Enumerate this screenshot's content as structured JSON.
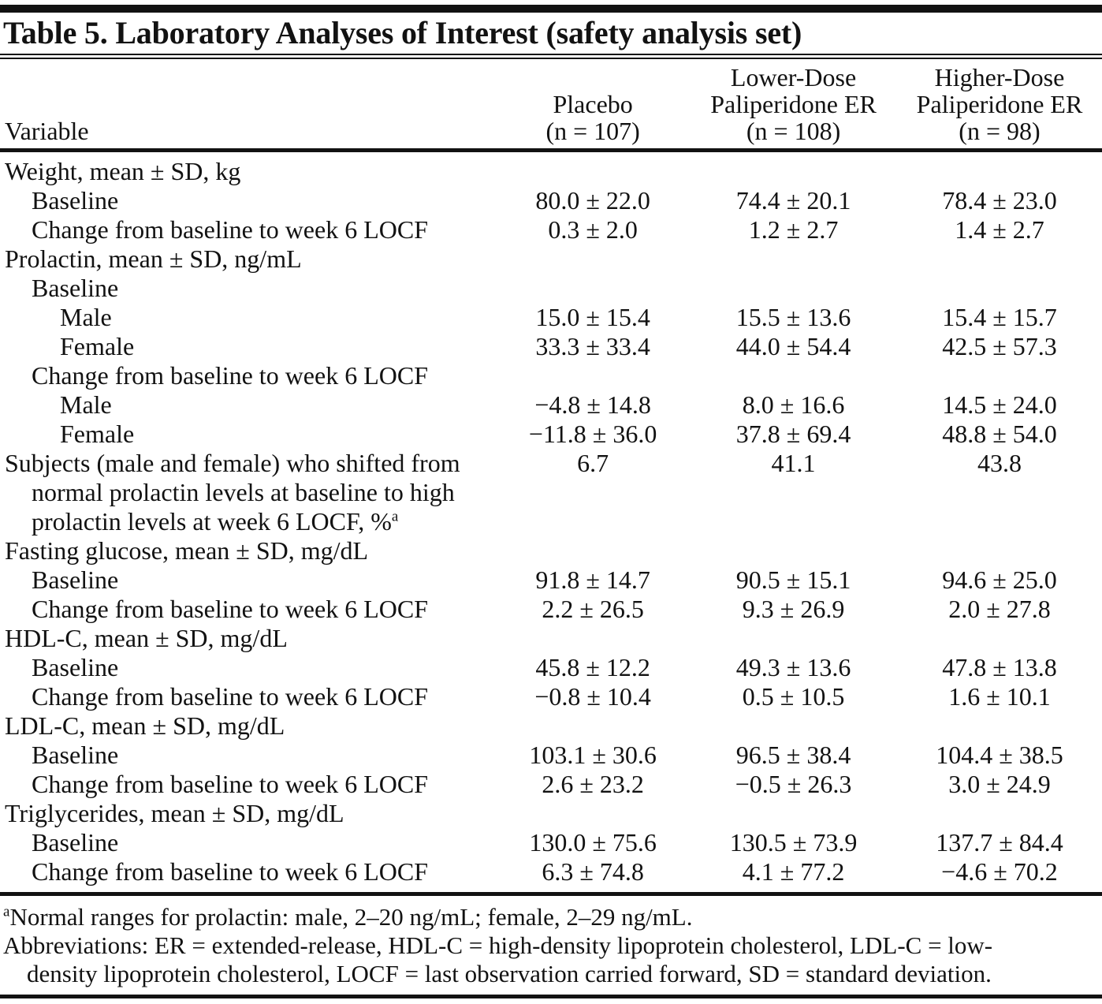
{
  "colors": {
    "text": "#121212",
    "background": "#ffffff",
    "rule": "#121212"
  },
  "table": {
    "title": "Table 5. Laboratory Analyses of Interest (safety analysis set)",
    "columns": [
      {
        "lines": [
          "Variable"
        ]
      },
      {
        "lines": [
          "Placebo",
          "(n = 107)"
        ]
      },
      {
        "lines": [
          "Lower-Dose",
          "Paliperidone ER",
          "(n = 108)"
        ]
      },
      {
        "lines": [
          "Higher-Dose",
          "Paliperidone ER",
          "(n = 98)"
        ]
      }
    ],
    "rows": [
      {
        "indent": 0,
        "label": "Weight, mean ± SD, kg",
        "sup": "",
        "values": [
          "",
          "",
          ""
        ]
      },
      {
        "indent": 1,
        "label": "Baseline",
        "sup": "",
        "values": [
          "80.0 ± 22.0",
          "74.4 ± 20.1",
          "78.4 ± 23.0"
        ]
      },
      {
        "indent": 1,
        "label": "Change from baseline to week 6 LOCF",
        "sup": "",
        "values": [
          "0.3 ± 2.0",
          "1.2 ± 2.7",
          "1.4 ± 2.7"
        ]
      },
      {
        "indent": 0,
        "label": "Prolactin, mean ± SD, ng/mL",
        "sup": "",
        "values": [
          "",
          "",
          ""
        ]
      },
      {
        "indent": 1,
        "label": "Baseline",
        "sup": "",
        "values": [
          "",
          "",
          ""
        ]
      },
      {
        "indent": 2,
        "label": "Male",
        "sup": "",
        "values": [
          "15.0 ± 15.4",
          "15.5 ± 13.6",
          "15.4 ± 15.7"
        ]
      },
      {
        "indent": 2,
        "label": "Female",
        "sup": "",
        "values": [
          "33.3 ± 33.4",
          "44.0 ± 54.4",
          "42.5 ± 57.3"
        ]
      },
      {
        "indent": 1,
        "label": "Change from baseline to week 6 LOCF",
        "sup": "",
        "values": [
          "",
          "",
          ""
        ]
      },
      {
        "indent": 2,
        "label": "Male",
        "sup": "",
        "values": [
          "−4.8 ± 14.8",
          "8.0 ± 16.6",
          "14.5 ± 24.0"
        ]
      },
      {
        "indent": 2,
        "label": "Female",
        "sup": "",
        "values": [
          "−11.8 ± 36.0",
          "37.8 ± 69.4",
          "48.8 ± 54.0"
        ]
      },
      {
        "indent": 0,
        "label": "Subjects (male and female) who shifted from",
        "sup": "",
        "values": [
          "6.7",
          "41.1",
          "43.8"
        ]
      },
      {
        "indent": 1,
        "label": "normal prolactin levels at baseline to high",
        "sup": "",
        "values": [
          "",
          "",
          ""
        ]
      },
      {
        "indent": 1,
        "label": "prolactin levels at week 6 LOCF, %",
        "sup": "a",
        "values": [
          "",
          "",
          ""
        ]
      },
      {
        "indent": 0,
        "label": "Fasting glucose, mean ± SD, mg/dL",
        "sup": "",
        "values": [
          "",
          "",
          ""
        ]
      },
      {
        "indent": 1,
        "label": "Baseline",
        "sup": "",
        "values": [
          "91.8 ± 14.7",
          "90.5 ± 15.1",
          "94.6 ± 25.0"
        ]
      },
      {
        "indent": 1,
        "label": "Change from baseline to week 6 LOCF",
        "sup": "",
        "values": [
          "2.2 ± 26.5",
          "9.3 ± 26.9",
          "2.0 ± 27.8"
        ]
      },
      {
        "indent": 0,
        "label": "HDL-C, mean ± SD, mg/dL",
        "sup": "",
        "values": [
          "",
          "",
          ""
        ]
      },
      {
        "indent": 1,
        "label": "Baseline",
        "sup": "",
        "values": [
          "45.8 ± 12.2",
          "49.3 ± 13.6",
          "47.8 ± 13.8"
        ]
      },
      {
        "indent": 1,
        "label": "Change from baseline to week 6 LOCF",
        "sup": "",
        "values": [
          "−0.8 ± 10.4",
          "0.5 ± 10.5",
          "1.6 ± 10.1"
        ]
      },
      {
        "indent": 0,
        "label": "LDL-C, mean ± SD, mg/dL",
        "sup": "",
        "values": [
          "",
          "",
          ""
        ]
      },
      {
        "indent": 1,
        "label": "Baseline",
        "sup": "",
        "values": [
          "103.1 ± 30.6",
          "96.5 ± 38.4",
          "104.4 ± 38.5"
        ]
      },
      {
        "indent": 1,
        "label": "Change from baseline to week 6 LOCF",
        "sup": "",
        "values": [
          "2.6 ± 23.2",
          "−0.5 ± 26.3",
          "3.0 ± 24.9"
        ]
      },
      {
        "indent": 0,
        "label": "Triglycerides, mean ± SD, mg/dL",
        "sup": "",
        "values": [
          "",
          "",
          ""
        ]
      },
      {
        "indent": 1,
        "label": "Baseline",
        "sup": "",
        "values": [
          "130.0 ± 75.6",
          "130.5 ± 73.9",
          "137.7 ± 84.4"
        ]
      },
      {
        "indent": 1,
        "label": "Change from baseline to week 6 LOCF",
        "sup": "",
        "values": [
          "6.3 ± 74.8",
          "4.1 ± 77.2",
          "−4.6 ± 70.2"
        ]
      }
    ],
    "footnotes": [
      {
        "sup": "a",
        "text": "Normal ranges for prolactin: male, 2–20 ng/mL; female, 2–29 ng/mL.",
        "indent": false
      },
      {
        "sup": "",
        "text": "Abbreviations: ER = extended-release, HDL-C = high-density lipoprotein cholesterol, LDL-C = low-",
        "indent": false
      },
      {
        "sup": "",
        "text": "density lipoprotein cholesterol, LOCF = last observation carried forward, SD = standard deviation.",
        "indent": true
      }
    ]
  }
}
